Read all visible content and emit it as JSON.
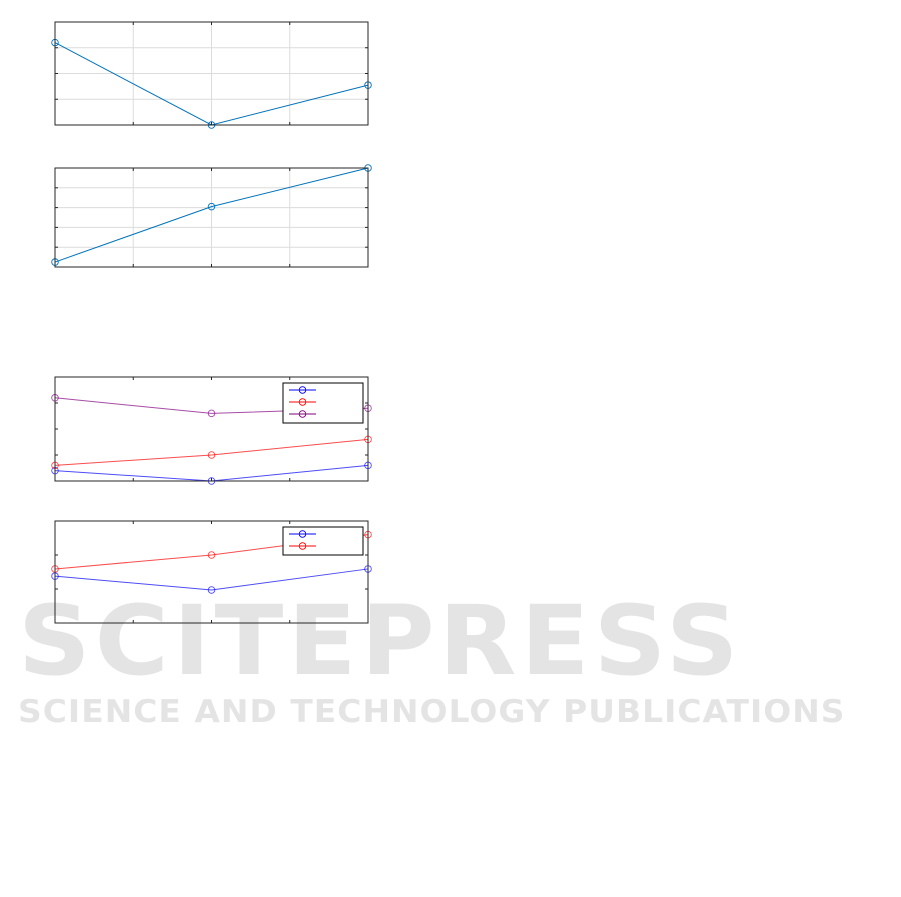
{
  "watermark": {
    "logo": "SCITEPRESS",
    "tagline": "SCIENCE AND TECHNOLOGY PUBLICATIONS"
  },
  "chart_data": [
    {
      "type": "line",
      "x": [
        0,
        2,
        4
      ],
      "xlim": [
        0,
        4
      ],
      "ylim": [
        0,
        4
      ],
      "grid": true,
      "series": [
        {
          "values": [
            3.2,
            0.0,
            1.55
          ],
          "color": "#0072BD"
        }
      ]
    },
    {
      "type": "line",
      "x": [
        0,
        2,
        4
      ],
      "xlim": [
        0,
        4
      ],
      "ylim": [
        0,
        5
      ],
      "grid": true,
      "series": [
        {
          "values": [
            0.25,
            3.05,
            5.0
          ],
          "color": "#0072BD"
        }
      ]
    },
    {
      "type": "line",
      "x": [
        0,
        2,
        4
      ],
      "xlim": [
        0,
        4
      ],
      "ylim": [
        0,
        4
      ],
      "grid": false,
      "legend": "top-right",
      "series": [
        {
          "name": "",
          "values": [
            0.4,
            0.0,
            0.6
          ],
          "color": "#0000FF"
        },
        {
          "name": "",
          "values": [
            0.6,
            1.0,
            1.6
          ],
          "color": "#FF0000"
        },
        {
          "name": "",
          "values": [
            3.2,
            2.6,
            2.8
          ],
          "color": "#800080"
        }
      ]
    },
    {
      "type": "line",
      "x": [
        0,
        2,
        4
      ],
      "xlim": [
        0,
        4
      ],
      "ylim": [
        0,
        3
      ],
      "grid": false,
      "legend": "top-right",
      "series": [
        {
          "name": "",
          "values": [
            1.38,
            0.97,
            1.59
          ],
          "color": "#0000FF"
        },
        {
          "name": "",
          "values": [
            1.59,
            2.0,
            2.6
          ],
          "color": "#FF0000"
        }
      ]
    }
  ]
}
